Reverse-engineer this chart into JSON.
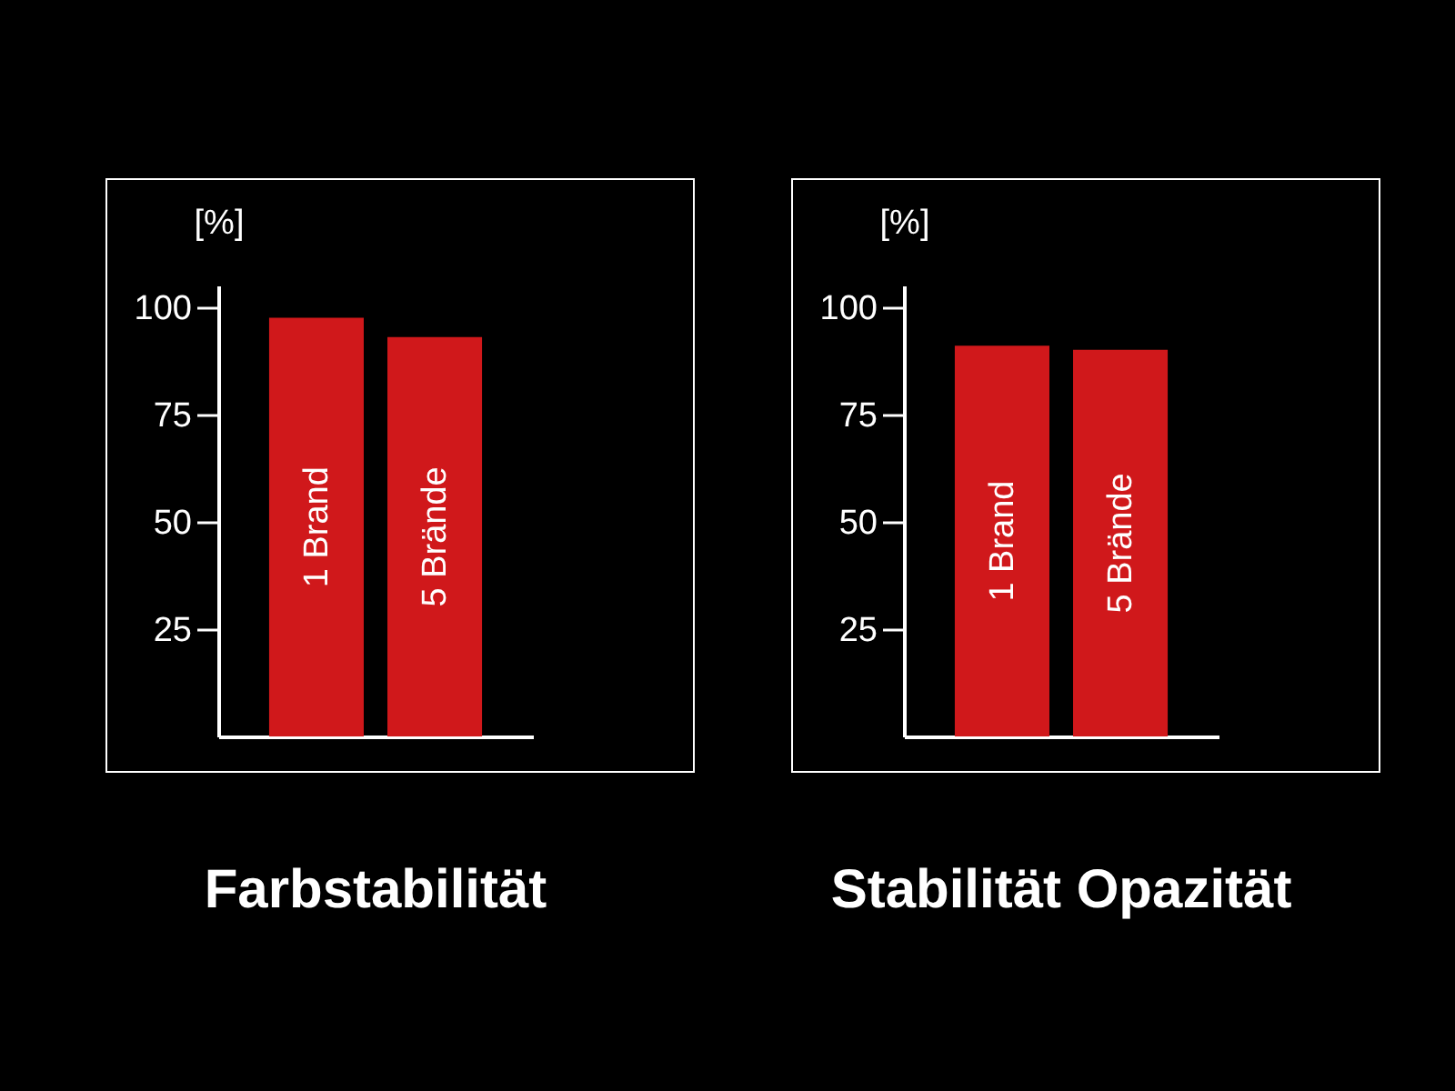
{
  "chart_data": [
    {
      "type": "bar",
      "title": "Farbstabilität",
      "ylabel": "[%]",
      "categories": [
        "1 Brand",
        "5 Brände"
      ],
      "values": [
        97.5,
        93
      ],
      "color": "#d0181b",
      "ylim": [
        0,
        105
      ],
      "yticks": [
        25,
        50,
        75,
        100
      ],
      "grid": false
    },
    {
      "type": "bar",
      "title": "Stabilität Opazität",
      "ylabel": "[%]",
      "categories": [
        "1 Brand",
        "5 Brände"
      ],
      "values": [
        91,
        90
      ],
      "color": "#d0181b",
      "ylim": [
        0,
        105
      ],
      "yticks": [
        25,
        50,
        75,
        100
      ],
      "grid": false
    }
  ]
}
